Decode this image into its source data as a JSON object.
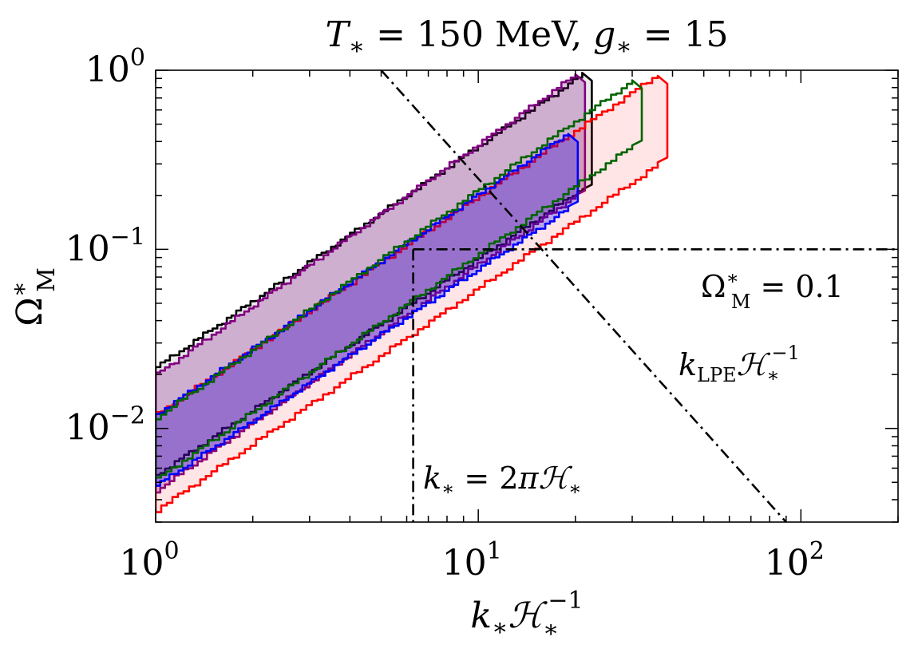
{
  "chart_data": {
    "type": "area",
    "title": "T_* = 150 MeV, g_* = 15",
    "xlabel": "k_* H_*^{-1}",
    "ylabel": "Ω*_M",
    "xscale": "log",
    "yscale": "log",
    "xlim": [
      1,
      200
    ],
    "ylim": [
      0.003,
      1
    ],
    "grid": false,
    "x_ticks": [
      {
        "value": 1,
        "base": "10",
        "exp": "0"
      },
      {
        "value": 10,
        "base": "10",
        "exp": "1"
      },
      {
        "value": 100,
        "base": "10",
        "exp": "2"
      }
    ],
    "y_ticks": [
      {
        "value": 0.01,
        "base": "10",
        "exp": "−2"
      },
      {
        "value": 0.1,
        "base": "10",
        "exp": "−1"
      },
      {
        "value": 1,
        "base": "10",
        "exp": "0"
      }
    ],
    "series": [
      {
        "color": "#000000",
        "fill": "#d9d9d9",
        "fill_opacity": 0.55,
        "x_range": [
          1,
          21
        ],
        "upper_y": [
          0.022,
          0.95
        ],
        "lower_y": [
          0.0055,
          0.22
        ]
      },
      {
        "color": "#800080",
        "fill": "#800080",
        "fill_opacity": 0.25,
        "x_range": [
          1,
          20
        ],
        "upper_y": [
          0.02,
          0.95
        ],
        "lower_y": [
          0.0045,
          0.2
        ]
      },
      {
        "color": "#ff0000",
        "fill": "#ff0000",
        "fill_opacity": 0.1,
        "x_range": [
          1,
          36
        ],
        "upper_y": [
          0.012,
          0.95
        ],
        "lower_y": [
          0.0035,
          0.3
        ]
      },
      {
        "color": "#0000ff",
        "fill": "#0000ff",
        "fill_opacity": 0.28,
        "x_range": [
          1,
          19
        ],
        "upper_y": [
          0.012,
          0.45
        ],
        "lower_y": [
          0.0048,
          0.17
        ]
      },
      {
        "color": "#006400",
        "fill": "none",
        "fill_opacity": 0,
        "x_range": [
          1,
          30
        ],
        "upper_y": [
          0.0115,
          0.88
        ],
        "lower_y": [
          0.0052,
          0.38
        ]
      }
    ],
    "reference_lines": [
      {
        "label": "k_LPE H_*^{-1}",
        "style": "dashdot",
        "x": [
          5,
          90
        ],
        "y": [
          1,
          0.003
        ]
      },
      {
        "label": "Ω*_M = 0.1",
        "style": "dashdot",
        "y": 0.1,
        "x_from": 6.2832
      },
      {
        "label": "k_* = 2π H_*",
        "style": "dashdot",
        "x": 6.2832,
        "y_to": 0.1
      }
    ]
  }
}
